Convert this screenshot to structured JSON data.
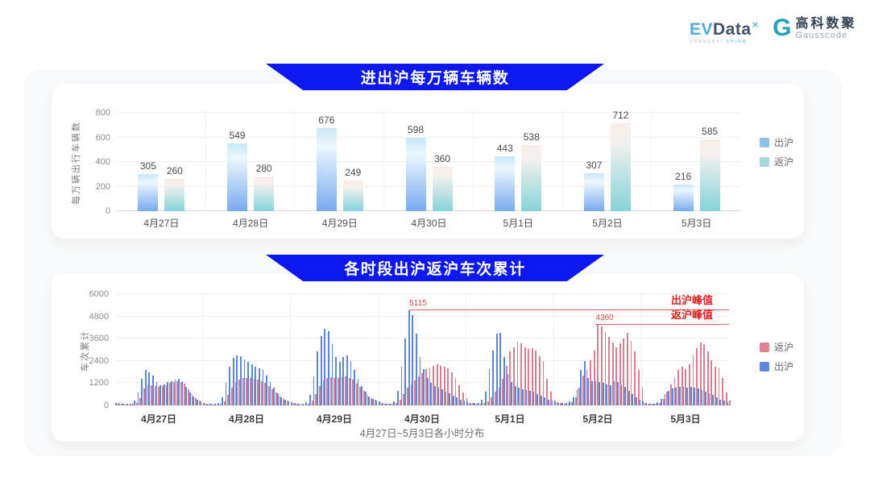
{
  "brand": {
    "evdata": {
      "ev": "EV",
      "data": "Data",
      "x_mark": "✕",
      "sub1": "SHANGHAI",
      "sub2": "CHINA"
    },
    "gausscode": {
      "cn": "高科数聚",
      "en": "Gausscode",
      "icon": "g-blocks-icon",
      "icon_glyph": "G"
    }
  },
  "colors": {
    "banner_blue": "#0d17ef",
    "daily_bar_blue_bottom": "#78aaef",
    "daily_bar_teal_bottom": "#85d3da",
    "daily_legend_blue": "#8fc0ea",
    "daily_legend_teal": "#a5d8dc",
    "hourly_bar_blue": "#5b87d8",
    "hourly_bar_pink": "#d97f95",
    "annotation_red": "#e01f1f",
    "annotation_line_red": "#e06060"
  },
  "chart_data": [
    {
      "type": "bar",
      "title": "进出沪每万辆车辆数",
      "xlabel": "",
      "ylabel": "每万辆出行车辆数",
      "ylim": [
        0,
        800
      ],
      "yticks": [
        0,
        200,
        400,
        600,
        800
      ],
      "grid": true,
      "legend_position": "right",
      "categories": [
        "4月27日",
        "4月28日",
        "4月29日",
        "4月30日",
        "5月1日",
        "5月2日",
        "5月3日"
      ],
      "series": [
        {
          "name": "出沪",
          "gradient": "blue",
          "legend_color": "#8fc0ea",
          "values": [
            305,
            549,
            676,
            598,
            443,
            307,
            216
          ]
        },
        {
          "name": "返沪",
          "gradient": "teal",
          "legend_color": "#a5d8dc",
          "values": [
            260,
            280,
            249,
            360,
            538,
            712,
            585
          ]
        }
      ]
    },
    {
      "type": "bar",
      "title": "各时段出沪返沪车次累计",
      "xlabel": "4月27日~5月3日各小时分布",
      "ylabel": "车次累计",
      "ylim": [
        0,
        6000
      ],
      "yticks": [
        0,
        1200,
        2400,
        3600,
        4800,
        6000
      ],
      "grid": true,
      "legend_position": "right",
      "x_unit": "hour 0-23 per day, values estimated from pixels",
      "categories": [
        "4月27日",
        "4月28日",
        "4月29日",
        "4月30日",
        "5月1日",
        "5月2日",
        "5月3日"
      ],
      "bar_order": [
        1,
        0
      ],
      "series": [
        {
          "name": "返沪",
          "color": "#d97f95",
          "legend_color": "#df8093",
          "values_by_day": [
            [
              120,
              80,
              60,
              50,
              70,
              150,
              400,
              900,
              1150,
              1100,
              1050,
              1000,
              1050,
              1100,
              1200,
              1250,
              1300,
              1280,
              1180,
              880,
              600,
              400,
              250,
              150
            ],
            [
              100,
              80,
              60,
              60,
              90,
              220,
              550,
              950,
              1250,
              1400,
              1480,
              1500,
              1500,
              1450,
              1380,
              1300,
              1200,
              1050,
              880,
              700,
              520,
              370,
              260,
              160
            ],
            [
              110,
              80,
              60,
              60,
              100,
              260,
              620,
              1050,
              1350,
              1480,
              1520,
              1500,
              1480,
              1520,
              1560,
              1500,
              1380,
              1180,
              980,
              780,
              580,
              400,
              290,
              190
            ],
            [
              140,
              100,
              80,
              80,
              130,
              300,
              600,
              950,
              1150,
              1350,
              1550,
              1750,
              1950,
              2050,
              2150,
              2200,
              2150,
              2100,
              1980,
              1780,
              1480,
              1080,
              680,
              380
            ],
            [
              150,
              110,
              80,
              80,
              110,
              220,
              420,
              720,
              950,
              1450,
              2150,
              2900,
              3150,
              3450,
              3350,
              3150,
              3050,
              3100,
              2950,
              2650,
              2380,
              1450,
              720,
              320
            ],
            [
              160,
              110,
              90,
              90,
              160,
              420,
              950,
              1600,
              1900,
              2450,
              2950,
              4360,
              4250,
              3950,
              3700,
              3400,
              3150,
              3350,
              3600,
              3900,
              3500,
              2900,
              1900,
              1000
            ],
            [
              150,
              100,
              80,
              80,
              120,
              350,
              750,
              1150,
              1500,
              1900,
              2100,
              1950,
              2200,
              2700,
              3100,
              3400,
              3300,
              2900,
              2450,
              2100,
              2050,
              1500,
              700,
              250
            ]
          ]
        },
        {
          "name": "出沪",
          "color": "#5b87d8",
          "legend_color": "#5b87dd",
          "values_by_day": [
            [
              150,
              100,
              80,
              70,
              90,
              250,
              700,
              1450,
              1900,
              1800,
              1600,
              1250,
              1100,
              1150,
              1250,
              1300,
              1400,
              1450,
              1300,
              1000,
              700,
              480,
              300,
              200
            ],
            [
              150,
              100,
              80,
              80,
              150,
              450,
              1200,
              2100,
              2550,
              2700,
              2650,
              2500,
              2350,
              2200,
              2100,
              2000,
              1900,
              1600,
              1250,
              950,
              650,
              450,
              320,
              220
            ],
            [
              160,
              110,
              80,
              80,
              160,
              550,
              1550,
              2900,
              3750,
              4150,
              4000,
              3300,
              2600,
              2350,
              2600,
              2700,
              2400,
              1900,
              1450,
              1050,
              750,
              500,
              350,
              240
            ],
            [
              200,
              140,
              100,
              100,
              220,
              800,
              2100,
              3600,
              5115,
              4880,
              3850,
              2600,
              1950,
              1500,
              1200,
              1050,
              950,
              850,
              760,
              650,
              540,
              430,
              320,
              260
            ],
            [
              220,
              150,
              110,
              110,
              320,
              750,
              1950,
              2950,
              3850,
              3900,
              2600,
              1700,
              1250,
              1050,
              950,
              880,
              820,
              780,
              720,
              620,
              520,
              420,
              320,
              260
            ],
            [
              220,
              150,
              110,
              110,
              220,
              420,
              850,
              1900,
              2400,
              1500,
              1300,
              1300,
              1250,
              1200,
              1150,
              1100,
              1300,
              1250,
              1150,
              1000,
              800,
              600,
              420,
              300
            ],
            [
              200,
              140,
              100,
              100,
              180,
              350,
              600,
              800,
              900,
              950,
              1000,
              980,
              950,
              980,
              950,
              900,
              820,
              750,
              650,
              550,
              430,
              320,
              250,
              180
            ]
          ]
        }
      ],
      "annotations": [
        {
          "name": "出沪峰值",
          "value": 5115,
          "value_label": "5115",
          "series": "出沪",
          "day_index": 3,
          "hour": 8
        },
        {
          "name": "返沪峰值",
          "value": 4360,
          "value_label": "4360",
          "series": "返沪",
          "day_index": 5,
          "hour": 11
        }
      ]
    }
  ]
}
